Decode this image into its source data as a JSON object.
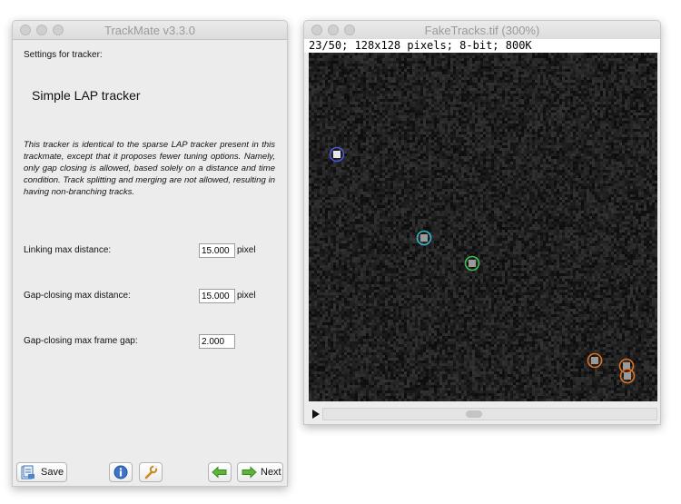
{
  "trackmate": {
    "title": "TrackMate v3.3.0",
    "header": "Settings for tracker:",
    "tracker_name": "Simple LAP tracker",
    "description": "This tracker is identical to the sparse LAP tracker present in this trackmate, except that it proposes fewer tuning options. Namely, only gap closing is allowed, based solely on a distance and time condition. Track splitting and merging are not allowed, resulting in having non-branching tracks.",
    "fields": [
      {
        "label": "Linking max distance:",
        "value": "15.000",
        "unit": "pixel"
      },
      {
        "label": "Gap-closing max distance:",
        "value": "15.000",
        "unit": "pixel"
      },
      {
        "label": "Gap-closing max frame gap:",
        "value": "2.000",
        "unit": ""
      }
    ],
    "buttons": {
      "save": "Save",
      "next": "Next"
    }
  },
  "image_window": {
    "title": "FakeTracks.tif (300%)",
    "info": "23/50; 128x128 pixels; 8-bit; 800K",
    "spots": [
      {
        "color": "#4a55d9"
      },
      {
        "color": "#35b8c8"
      },
      {
        "color": "#3fbf52"
      },
      {
        "color": "#e0701e"
      },
      {
        "color": "#e0701e"
      },
      {
        "color": "#e0701e"
      }
    ]
  }
}
